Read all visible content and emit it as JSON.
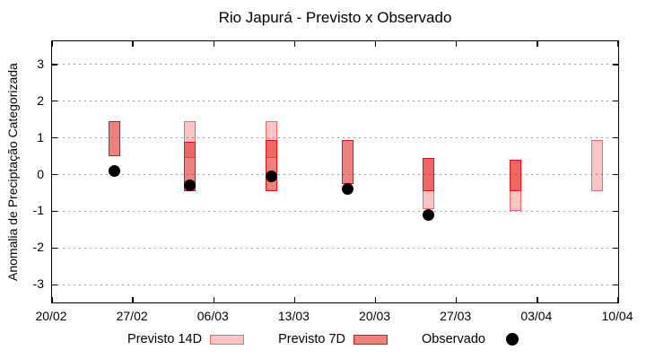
{
  "chart_data": {
    "type": "range-bars-with-points",
    "title": "Rio Japurá - Previsto x Observado",
    "ylabel": "Anomalia de Preciptação Categorizada",
    "xlabel": "",
    "grid": "horizontal dotted gray lines at each integer y",
    "legend_position": "below plot, horizontal",
    "ylim": [
      -3.48,
      3.63
    ],
    "yticks": [
      3,
      2,
      1,
      0,
      -1,
      -2,
      -3
    ],
    "xlim_days": [
      0,
      49
    ],
    "xticks": [
      {
        "day": 0,
        "label": "20/02"
      },
      {
        "day": 7,
        "label": "27/02"
      },
      {
        "day": 14,
        "label": "06/03"
      },
      {
        "day": 21,
        "label": "13/03"
      },
      {
        "day": 28,
        "label": "20/03"
      },
      {
        "day": 35,
        "label": "27/03"
      },
      {
        "day": 42,
        "label": "03/04"
      },
      {
        "day": 49,
        "label": "10/04"
      }
    ],
    "series": {
      "previsto_14d": {
        "label": "Previsto 14D",
        "fill": "rgba(230,25,20,0.25)",
        "border": "rgba(225,20,15,0.5)",
        "ranges": [
          {
            "date": "04/03",
            "day": 11.9,
            "low": 0.45,
            "high": 1.45
          },
          {
            "date": "11/03",
            "day": 19.0,
            "low": 0.45,
            "high": 1.45
          },
          {
            "date": "25/03",
            "day": 32.6,
            "low": -0.95,
            "high": 0.45
          },
          {
            "date": "01/04",
            "day": 40.1,
            "low": -1.0,
            "high": 0.4
          },
          {
            "date": "08/04",
            "day": 47.2,
            "low": -0.45,
            "high": 0.95
          }
        ]
      },
      "previsto_7d": {
        "label": "Previsto 7D",
        "fill": "rgba(230,25,20,0.55)",
        "border": "#e31014",
        "ranges": [
          {
            "date": "25/02",
            "day": 5.4,
            "low": 0.5,
            "high": 1.45
          },
          {
            "date": "04/03",
            "day": 11.9,
            "low": -0.45,
            "high": 0.9
          },
          {
            "date": "11/03",
            "day": 19.0,
            "low": -0.45,
            "high": 0.95
          },
          {
            "date": "18/03",
            "day": 25.6,
            "low": -0.25,
            "high": 0.95
          },
          {
            "date": "25/03",
            "day": 32.6,
            "low": -0.45,
            "high": 0.45
          },
          {
            "date": "01/04",
            "day": 40.1,
            "low": -0.45,
            "high": 0.4
          }
        ]
      },
      "observado": {
        "label": "Observado",
        "color": "#000000",
        "points": [
          {
            "date": "25/02",
            "day": 5.4,
            "value": 0.1
          },
          {
            "date": "04/03",
            "day": 11.9,
            "value": -0.3
          },
          {
            "date": "11/03",
            "day": 19.0,
            "value": -0.05
          },
          {
            "date": "18/03",
            "day": 25.6,
            "value": -0.4
          },
          {
            "date": "25/03",
            "day": 32.6,
            "value": -1.1
          }
        ]
      }
    }
  }
}
